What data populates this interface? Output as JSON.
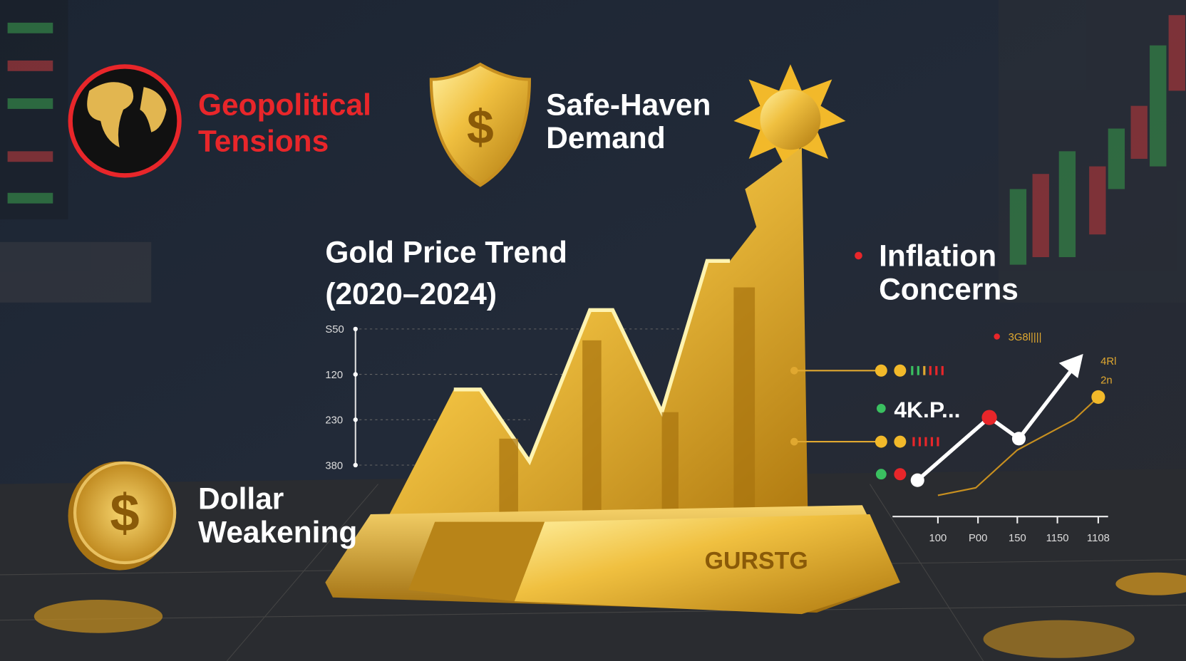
{
  "labels": {
    "geopolitical": [
      "Geopolitical",
      "Tensions"
    ],
    "safe_haven": [
      "Safe-Haven",
      "Demand"
    ],
    "inflation": [
      "Inflation",
      "Concerns"
    ],
    "dollar": [
      "Dollar",
      "Weakening"
    ]
  },
  "trend": {
    "title": [
      "Gold Price Trend",
      "(2020–2024)"
    ],
    "axis_labels": [
      "S50",
      "120",
      "230",
      "380"
    ]
  },
  "bar_label": "GURSTG",
  "side_chart": {
    "label": "4K.P...",
    "legend": "3G8l||||",
    "corner_labels": [
      "4Rl",
      "2n"
    ],
    "x_labels": [
      "100",
      "P00",
      "150",
      "1150",
      "1108"
    ]
  }
}
